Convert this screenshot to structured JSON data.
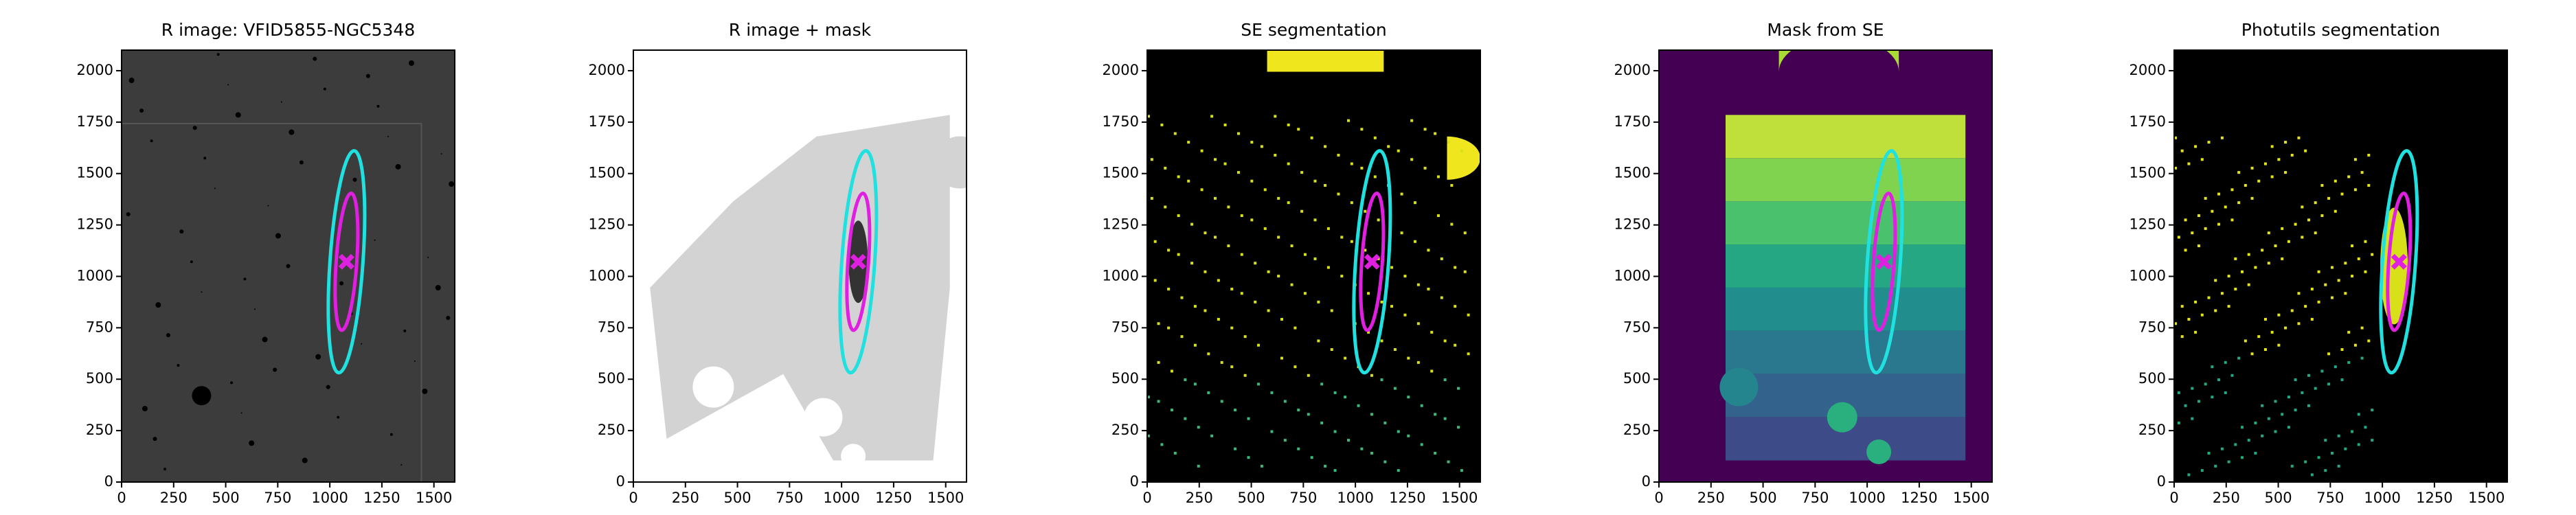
{
  "chart_data": [
    {
      "type": "image",
      "title": "R image: VFID5855-NGC5348",
      "background": "#3c3c3c",
      "xlim": [
        0,
        1600
      ],
      "ylim": [
        0,
        2100
      ],
      "xticks": [
        0,
        250,
        500,
        750,
        1000,
        1250,
        1500
      ],
      "yticks": [
        0,
        250,
        500,
        750,
        1000,
        1250,
        1500,
        1750,
        2000
      ]
    },
    {
      "type": "image",
      "title": "R image + mask",
      "background": "#ffffff",
      "xlim": [
        0,
        1600
      ],
      "ylim": [
        0,
        2100
      ],
      "xticks": [
        0,
        250,
        500,
        750,
        1000,
        1250,
        1500
      ],
      "yticks": [
        0,
        250,
        500,
        750,
        1000,
        1250,
        1500,
        1750,
        2000
      ]
    },
    {
      "type": "image",
      "title": "SE segmentation",
      "background": "#000000",
      "xlim": [
        0,
        1600
      ],
      "ylim": [
        0,
        2100
      ],
      "xticks": [
        0,
        250,
        500,
        750,
        1000,
        1250,
        1500
      ],
      "yticks": [
        0,
        250,
        500,
        750,
        1000,
        1250,
        1500,
        1750,
        2000
      ]
    },
    {
      "type": "image",
      "title": "Mask from SE",
      "background": "#440154",
      "xlim": [
        0,
        1600
      ],
      "ylim": [
        0,
        2100
      ],
      "xticks": [
        0,
        250,
        500,
        750,
        1000,
        1250,
        1500
      ],
      "yticks": [
        0,
        250,
        500,
        750,
        1000,
        1250,
        1500,
        1750,
        2000
      ]
    },
    {
      "type": "image",
      "title": "Photutils segmentation",
      "background": "#000000",
      "xlim": [
        0,
        1600
      ],
      "ylim": [
        0,
        2100
      ],
      "xticks": [
        0,
        250,
        500,
        750,
        1000,
        1250,
        1500
      ],
      "yticks": [
        0,
        250,
        500,
        750,
        1000,
        1250,
        1500,
        1750,
        2000
      ]
    }
  ]
}
